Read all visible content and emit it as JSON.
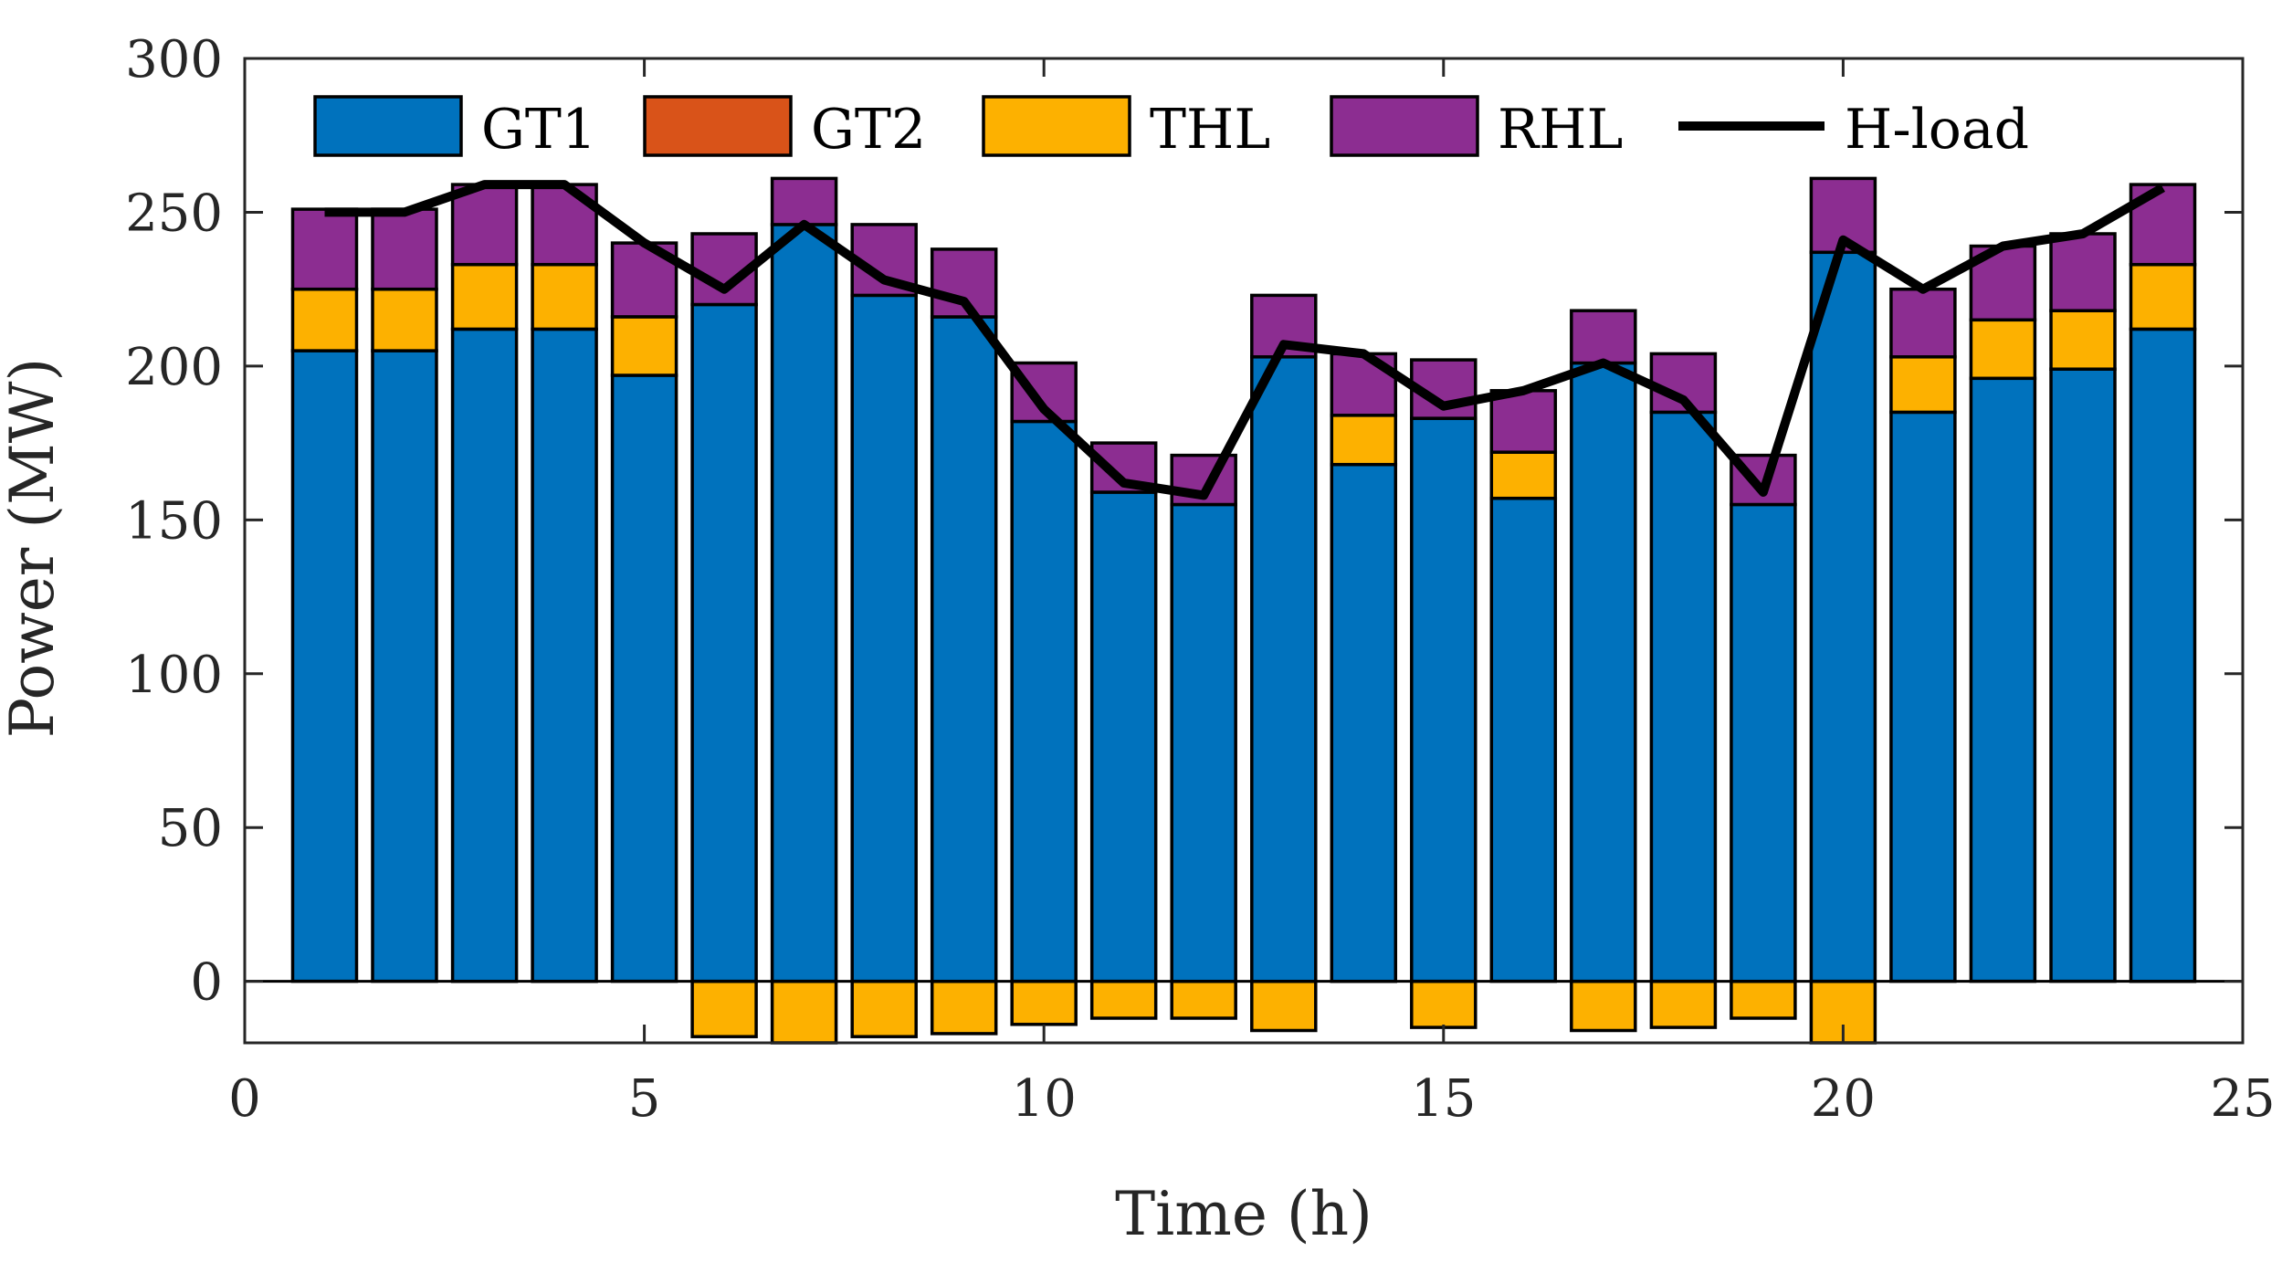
{
  "chart_data": {
    "type": "bar",
    "stacked": true,
    "xlabel": "Time (h)",
    "ylabel": "Power (MW)",
    "xlim": [
      0,
      25
    ],
    "ylim": [
      -20,
      300
    ],
    "x_ticks": [
      "0",
      "5",
      "10",
      "15",
      "20",
      "25"
    ],
    "y_ticks": [
      "0",
      "50",
      "100",
      "150",
      "200",
      "250",
      "300"
    ],
    "legend_position": "top",
    "x": [
      1,
      2,
      3,
      4,
      5,
      6,
      7,
      8,
      9,
      10,
      11,
      12,
      13,
      14,
      15,
      16,
      17,
      18,
      19,
      20,
      21,
      22,
      23,
      24
    ],
    "series": [
      {
        "name": "GT1",
        "color": "#0072BD",
        "values": [
          205,
          205,
          212,
          212,
          197,
          220,
          246,
          223,
          216,
          182,
          159,
          155,
          203,
          168,
          183,
          157,
          201,
          185,
          155,
          237,
          185,
          196,
          199,
          212
        ]
      },
      {
        "name": "GT2",
        "color": "#D95319",
        "values": [
          0,
          0,
          0,
          0,
          0,
          0,
          0,
          0,
          0,
          0,
          0,
          0,
          0,
          0,
          0,
          0,
          0,
          0,
          0,
          0,
          0,
          0,
          0,
          0
        ]
      },
      {
        "name": "THL",
        "color": "#FDB100",
        "values": [
          20,
          20,
          21,
          21,
          19,
          -18,
          -20,
          -18,
          -17,
          -14,
          -12,
          -12,
          -16,
          16,
          -15,
          15,
          -16,
          -15,
          -12,
          -20,
          18,
          19,
          19,
          21
        ]
      },
      {
        "name": "RHL",
        "color": "#8C2D91",
        "values": [
          26,
          26,
          26,
          26,
          24,
          23,
          15,
          23,
          22,
          19,
          16,
          16,
          20,
          20,
          19,
          20,
          17,
          19,
          16,
          24,
          22,
          24,
          25,
          26
        ]
      }
    ],
    "line": {
      "name": "H-load",
      "color": "#000000",
      "values": [
        250,
        250,
        259,
        259,
        240,
        225,
        246,
        228,
        221,
        186,
        162,
        158,
        207,
        204,
        187,
        192,
        201,
        189,
        159,
        241,
        225,
        239,
        243,
        258
      ]
    }
  }
}
